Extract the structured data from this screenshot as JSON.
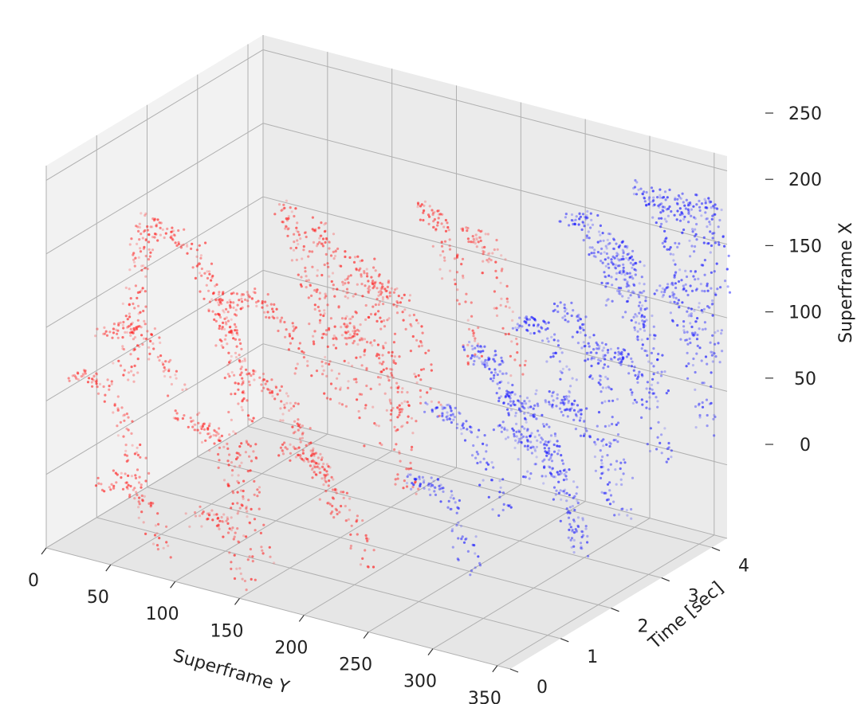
{
  "chart_data": {
    "type": "scatter",
    "projection": "3d",
    "grid": true,
    "axes": {
      "x": {
        "label": "Superframe Y",
        "range": [
          0,
          360
        ],
        "ticks": [
          "0",
          "50",
          "100",
          "150",
          "200",
          "250",
          "300",
          "350"
        ]
      },
      "y": {
        "label": "Time [sec]",
        "range": [
          0,
          4.3
        ],
        "ticks": [
          "0",
          "1",
          "2",
          "3",
          "4"
        ]
      },
      "z": {
        "label": "Superframe X",
        "range": [
          0,
          260
        ],
        "ticks": [
          "0",
          "50",
          "100",
          "150",
          "200",
          "250"
        ]
      }
    },
    "colors": {
      "on_events": "#ff1a1a",
      "off_events": "#1414ff",
      "pane": "#ebebeb",
      "grid": "#b0b0b0"
    },
    "series": [
      {
        "color": "#ff1a1a",
        "strokes": [
          {
            "p0": [
              80,
              0.05,
              240
            ],
            "p1": [
              55,
              0.15,
              120
            ],
            "n": 120
          },
          {
            "p0": [
              90,
              0.05,
              235
            ],
            "p1": [
              140,
              0.1,
              160
            ],
            "n": 90
          },
          {
            "p0": [
              130,
              0.1,
              200
            ],
            "p1": [
              150,
              0.2,
              60
            ],
            "n": 140
          },
          {
            "p0": [
              40,
              0.1,
              150
            ],
            "p1": [
              100,
              0.15,
              120
            ],
            "n": 80
          },
          {
            "p0": [
              20,
              0.05,
              120
            ],
            "p1": [
              70,
              0.1,
              60
            ],
            "n": 80
          },
          {
            "p0": [
              100,
              0.15,
              110
            ],
            "p1": [
              160,
              0.2,
              20
            ],
            "n": 110
          },
          {
            "p0": [
              40,
              0.05,
              50
            ],
            "p1": [
              90,
              0.1,
              10
            ],
            "n": 70
          },
          {
            "p0": [
              110,
              0.1,
              40
            ],
            "p1": [
              150,
              0.15,
              5
            ],
            "n": 60
          },
          {
            "p0": [
              150,
              0.8,
              250
            ],
            "p1": [
              190,
              0.9,
              120
            ],
            "n": 120
          },
          {
            "p0": [
              170,
              1.0,
              240
            ],
            "p1": [
              210,
              1.1,
              90
            ],
            "n": 120
          },
          {
            "p0": [
              200,
              1.1,
              220
            ],
            "p1": [
              230,
              1.3,
              60
            ],
            "n": 130
          },
          {
            "p0": [
              120,
              0.6,
              180
            ],
            "p1": [
              170,
              0.8,
              140
            ],
            "n": 80
          },
          {
            "p0": [
              130,
              0.5,
              140
            ],
            "p1": [
              200,
              0.7,
              50
            ],
            "n": 120
          },
          {
            "p0": [
              160,
              0.6,
              90
            ],
            "p1": [
              220,
              0.8,
              20
            ],
            "n": 100
          },
          {
            "p0": [
              210,
              1.2,
              200
            ],
            "p1": [
              240,
              1.5,
              120
            ],
            "n": 80
          },
          {
            "p0": [
              230,
              1.6,
              250
            ],
            "p1": [
              260,
              1.8,
              150
            ],
            "n": 90
          },
          {
            "p0": [
              250,
              2.0,
              230
            ],
            "p1": [
              280,
              2.2,
              140
            ],
            "n": 80
          },
          {
            "p0": [
              180,
              0.9,
              170
            ],
            "p1": [
              240,
              1.1,
              110
            ],
            "n": 80
          }
        ]
      },
      {
        "color": "#1414ff",
        "strokes": [
          {
            "p0": [
              250,
              2.0,
              150
            ],
            "p1": [
              290,
              2.3,
              60
            ],
            "n": 110
          },
          {
            "p0": [
              270,
              2.2,
              120
            ],
            "p1": [
              320,
              2.5,
              20
            ],
            "n": 130
          },
          {
            "p0": [
              300,
              2.6,
              180
            ],
            "p1": [
              340,
              2.8,
              60
            ],
            "n": 120
          },
          {
            "p0": [
              320,
              3.0,
              220
            ],
            "p1": [
              350,
              3.2,
              120
            ],
            "n": 110
          },
          {
            "p0": [
              330,
              3.4,
              250
            ],
            "p1": [
              360,
              3.6,
              150
            ],
            "n": 110
          },
          {
            "p0": [
              340,
              3.8,
              240
            ],
            "p1": [
              360,
              4.1,
              120
            ],
            "n": 110
          },
          {
            "p0": [
              300,
              3.3,
              200
            ],
            "p1": [
              340,
              3.5,
              110
            ],
            "n": 90
          },
          {
            "p0": [
              280,
              2.7,
              110
            ],
            "p1": [
              330,
              3.0,
              30
            ],
            "n": 100
          },
          {
            "p0": [
              230,
              1.7,
              110
            ],
            "p1": [
              280,
              2.0,
              40
            ],
            "n": 90
          },
          {
            "p0": [
              260,
              2.4,
              90
            ],
            "p1": [
              310,
              2.7,
              10
            ],
            "n": 100
          },
          {
            "p0": [
              220,
              1.6,
              60
            ],
            "p1": [
              260,
              1.8,
              5
            ],
            "n": 80
          },
          {
            "p0": [
              310,
              3.1,
              140
            ],
            "p1": [
              350,
              3.3,
              70
            ],
            "n": 90
          },
          {
            "p0": [
              290,
              2.9,
              230
            ],
            "p1": [
              320,
              3.1,
              170
            ],
            "n": 70
          },
          {
            "p0": [
              340,
              3.6,
              180
            ],
            "p1": [
              360,
              3.9,
              80
            ],
            "n": 90
          },
          {
            "p0": [
              270,
              2.5,
              160
            ],
            "p1": [
              300,
              2.8,
              100
            ],
            "n": 80
          },
          {
            "p0": [
              350,
              4.0,
              230
            ],
            "p1": [
              360,
              4.2,
              170
            ],
            "n": 60
          }
        ]
      }
    ]
  }
}
